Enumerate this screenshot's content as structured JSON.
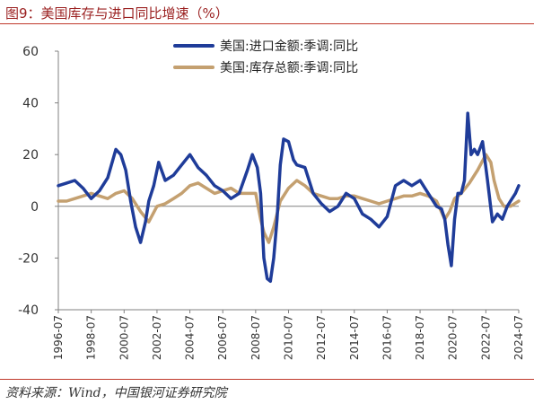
{
  "title": "图9：美国库存与进口同比增速（%）",
  "source": "资料来源：Wind，中国银河证券研究院",
  "chart_data": {
    "type": "line",
    "title": "图9：美国库存与进口同比增速（%）",
    "xlabel": "",
    "ylabel": "",
    "ylim": [
      -40,
      60
    ],
    "yticks": [
      -40,
      -20,
      0,
      20,
      40,
      60
    ],
    "xlim": [
      1996.5,
      2024.5
    ],
    "xticks": [
      "1996-07",
      "1998-07",
      "2000-07",
      "2002-07",
      "2004-07",
      "2006-07",
      "2008-07",
      "2010-07",
      "2012-07",
      "2014-07",
      "2016-07",
      "2018-07",
      "2020-07",
      "2022-07",
      "2024-07"
    ],
    "grid": false,
    "legend": "top-center",
    "series": [
      {
        "name": "美国:进口金额:季调:同比",
        "color": "#1f3c99",
        "x": [
          1996.5,
          1997.0,
          1997.5,
          1998.0,
          1998.5,
          1999.0,
          1999.5,
          2000.0,
          2000.3,
          2000.6,
          2000.9,
          2001.2,
          2001.5,
          2001.8,
          2002.0,
          2002.3,
          2002.6,
          2003.0,
          2003.5,
          2004.0,
          2004.5,
          2005.0,
          2005.5,
          2006.0,
          2006.5,
          2007.0,
          2007.5,
          2008.0,
          2008.3,
          2008.6,
          2008.8,
          2009.0,
          2009.2,
          2009.4,
          2009.6,
          2009.8,
          2010.0,
          2010.2,
          2010.5,
          2010.8,
          2011.0,
          2011.5,
          2012.0,
          2012.5,
          2013.0,
          2013.5,
          2014.0,
          2014.5,
          2015.0,
          2015.5,
          2016.0,
          2016.5,
          2017.0,
          2017.5,
          2018.0,
          2018.5,
          2019.0,
          2019.5,
          2019.8,
          2020.0,
          2020.2,
          2020.4,
          2020.6,
          2020.8,
          2021.0,
          2021.2,
          2021.4,
          2021.6,
          2021.8,
          2022.0,
          2022.3,
          2022.6,
          2022.9,
          2023.2,
          2023.5,
          2023.8,
          2024.0,
          2024.3,
          2024.5
        ],
        "values": [
          8,
          9,
          10,
          7,
          3,
          6,
          11,
          22,
          20,
          14,
          2,
          -8,
          -14,
          -6,
          2,
          8,
          17,
          10,
          12,
          16,
          20,
          15,
          12,
          8,
          6,
          3,
          5,
          14,
          20,
          15,
          5,
          -20,
          -28,
          -29,
          -20,
          -5,
          16,
          26,
          25,
          18,
          16,
          15,
          5,
          1,
          -2,
          0,
          5,
          3,
          -3,
          -5,
          -8,
          -4,
          8,
          10,
          8,
          10,
          5,
          0,
          -1,
          -5,
          -15,
          -23,
          -5,
          5,
          5,
          10,
          36,
          20,
          22,
          20,
          25,
          10,
          -6,
          -3,
          -5,
          0,
          2,
          5,
          8
        ]
      },
      {
        "name": "美国:库存总额:季调:同比",
        "color": "#c4a070",
        "x": [
          1996.5,
          1997.0,
          1997.5,
          1998.0,
          1998.5,
          1999.0,
          1999.5,
          2000.0,
          2000.5,
          2001.0,
          2001.5,
          2002.0,
          2002.5,
          2003.0,
          2003.5,
          2004.0,
          2004.5,
          2005.0,
          2005.5,
          2006.0,
          2006.5,
          2007.0,
          2007.5,
          2008.0,
          2008.5,
          2008.8,
          2009.0,
          2009.3,
          2009.6,
          2010.0,
          2010.5,
          2011.0,
          2011.5,
          2012.0,
          2012.5,
          2013.0,
          2013.5,
          2014.0,
          2014.5,
          2015.0,
          2015.5,
          2016.0,
          2016.5,
          2017.0,
          2017.5,
          2018.0,
          2018.5,
          2019.0,
          2019.5,
          2020.0,
          2020.3,
          2020.6,
          2021.0,
          2021.5,
          2022.0,
          2022.5,
          2022.8,
          2023.0,
          2023.3,
          2023.6,
          2024.0,
          2024.5
        ],
        "values": [
          2,
          2,
          3,
          4,
          5,
          4,
          3,
          5,
          6,
          3,
          -2,
          -6,
          0,
          1,
          3,
          5,
          8,
          9,
          7,
          5,
          6,
          7,
          5,
          5,
          5,
          -5,
          -10,
          -14,
          -8,
          2,
          7,
          10,
          8,
          5,
          4,
          3,
          3,
          4,
          4,
          3,
          2,
          1,
          2,
          3,
          4,
          4,
          5,
          4,
          2,
          -5,
          -2,
          3,
          5,
          9,
          14,
          20,
          17,
          10,
          3,
          0,
          0,
          2
        ]
      }
    ]
  }
}
